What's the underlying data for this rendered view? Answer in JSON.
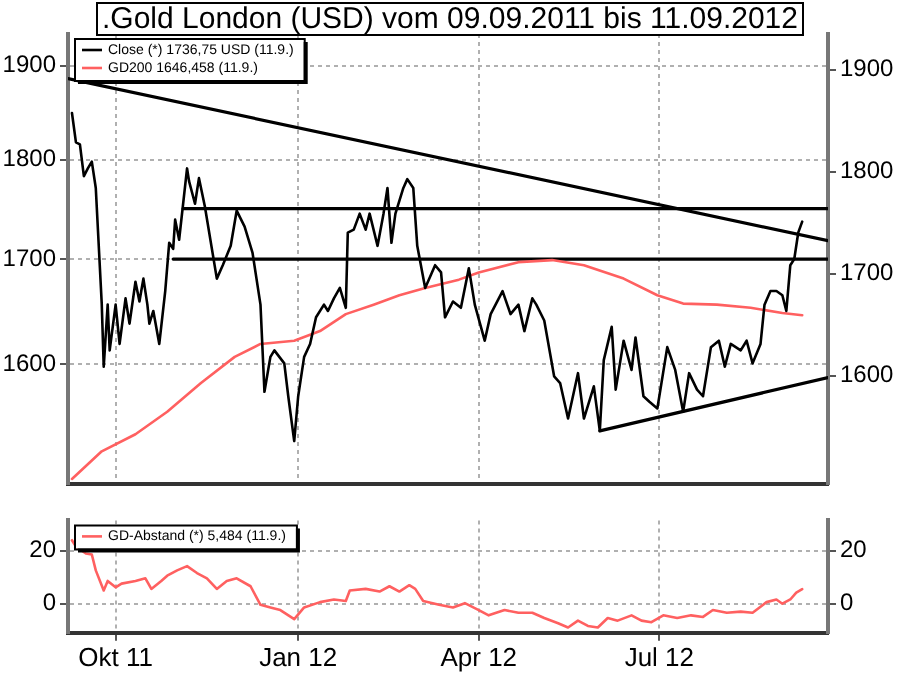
{
  "chart_data": [
    {
      "type": "line",
      "title": ".Gold London (USD) vom 09.09.2011 bis 11.09.2012",
      "log": true,
      "grid": true,
      "legend": "top left",
      "tick_labels": "y",
      "xlim": [
        "2011-09-07",
        "2012-09-24"
      ],
      "xticks": [
        {
          "value": "2011-10-01",
          "label": null
        },
        {
          "value": "2012-01-01",
          "label": null
        },
        {
          "value": "2012-04-01",
          "label": null
        },
        {
          "value": "2012-07-01",
          "label": null
        }
      ],
      "ylim": [
        1494,
        1935
      ],
      "yticks": [
        1600,
        1700,
        1800,
        1900
      ],
      "y2lim": [
        1494,
        1935
      ],
      "y2ticks": [
        1600,
        1700,
        1800,
        1900
      ],
      "series": [
        {
          "name": "Close (*) 1736,75 USD (11.9.)",
          "color": "#000000",
          "x": [
            "2011-09-09",
            "2011-09-11",
            "2011-09-13",
            "2011-09-15",
            "2011-09-17",
            "2011-09-19",
            "2011-09-21",
            "2011-09-24",
            "2011-09-25",
            "2011-09-27",
            "2011-09-28",
            "2011-10-01",
            "2011-10-03",
            "2011-10-06",
            "2011-10-08",
            "2011-10-11",
            "2011-10-13",
            "2011-10-15",
            "2011-10-17",
            "2011-10-18",
            "2011-10-20",
            "2011-10-23",
            "2011-10-26",
            "2011-10-28",
            "2011-10-30",
            "2011-10-31",
            "2011-11-02",
            "2011-11-06",
            "2011-11-07",
            "2011-11-10",
            "2011-11-12",
            "2011-11-15",
            "2011-11-21",
            "2011-11-24",
            "2011-11-28",
            "2011-12-01",
            "2011-12-05",
            "2011-12-09",
            "2011-12-13",
            "2011-12-15",
            "2011-12-18",
            "2011-12-20",
            "2011-12-25",
            "2011-12-27",
            "2011-12-30",
            "2012-01-01",
            "2012-01-04",
            "2012-01-07",
            "2012-01-10",
            "2012-01-14",
            "2012-01-16",
            "2012-01-19",
            "2012-01-22",
            "2012-01-25",
            "2012-01-26",
            "2012-01-29",
            "2012-02-01",
            "2012-02-04",
            "2012-02-06",
            "2012-02-10",
            "2012-02-13",
            "2012-02-15",
            "2012-02-17",
            "2012-02-19",
            "2012-02-23",
            "2012-02-25",
            "2012-02-28",
            "2012-03-01",
            "2012-03-05",
            "2012-03-10",
            "2012-03-13",
            "2012-03-15",
            "2012-03-19",
            "2012-03-23",
            "2012-03-27",
            "2012-03-30",
            "2012-04-04",
            "2012-04-07",
            "2012-04-13",
            "2012-04-17",
            "2012-04-21",
            "2012-04-24",
            "2012-04-28",
            "2012-04-30",
            "2012-05-04",
            "2012-05-09",
            "2012-05-12",
            "2012-05-16",
            "2012-05-21",
            "2012-05-24",
            "2012-05-29",
            "2012-06-01",
            "2012-06-03",
            "2012-06-07",
            "2012-06-09",
            "2012-06-13",
            "2012-06-17",
            "2012-06-19",
            "2012-06-23",
            "2012-06-26",
            "2012-06-30",
            "2012-07-05",
            "2012-07-09",
            "2012-07-13",
            "2012-07-16",
            "2012-07-20",
            "2012-07-23",
            "2012-07-27",
            "2012-07-31",
            "2012-08-03",
            "2012-08-06",
            "2012-08-11",
            "2012-08-14",
            "2012-08-17",
            "2012-08-21",
            "2012-08-23",
            "2012-08-26",
            "2012-08-29",
            "2012-09-01",
            "2012-09-03",
            "2012-09-05",
            "2012-09-07",
            "2012-09-09",
            "2012-09-11"
          ],
          "values": [
            1849,
            1818,
            1816,
            1783,
            1791,
            1798,
            1771,
            1657,
            1598,
            1656,
            1613,
            1656,
            1619,
            1662,
            1638,
            1678,
            1659,
            1681,
            1656,
            1638,
            1650,
            1619,
            1669,
            1716,
            1710,
            1739,
            1719,
            1791,
            1778,
            1755,
            1781,
            1752,
            1681,
            1694,
            1713,
            1748,
            1732,
            1706,
            1656,
            1575,
            1607,
            1613,
            1601,
            1571,
            1531,
            1571,
            1607,
            1619,
            1644,
            1656,
            1650,
            1662,
            1672,
            1653,
            1726,
            1729,
            1745,
            1729,
            1745,
            1713,
            1745,
            1771,
            1716,
            1745,
            1771,
            1780,
            1771,
            1713,
            1672,
            1694,
            1687,
            1644,
            1659,
            1653,
            1691,
            1656,
            1622,
            1647,
            1669,
            1647,
            1656,
            1631,
            1662,
            1656,
            1641,
            1589,
            1583,
            1551,
            1592,
            1551,
            1580,
            1540,
            1604,
            1635,
            1577,
            1622,
            1595,
            1625,
            1571,
            1566,
            1560,
            1616,
            1595,
            1557,
            1592,
            1577,
            1571,
            1616,
            1622,
            1598,
            1619,
            1613,
            1622,
            1601,
            1619,
            1656,
            1669,
            1669,
            1665,
            1650,
            1694,
            1700,
            1726,
            1737
          ]
        },
        {
          "name": "GD200 1646,458 (11.9.)",
          "color": "#ff6060",
          "x": [
            "2011-09-09",
            "2011-09-24",
            "2011-10-11",
            "2011-10-27",
            "2011-11-13",
            "2011-11-30",
            "2011-12-13",
            "2011-12-30",
            "2012-01-12",
            "2012-01-25",
            "2012-02-08",
            "2012-02-21",
            "2012-03-05",
            "2012-03-22",
            "2012-04-01",
            "2012-04-21",
            "2012-05-08",
            "2012-05-24",
            "2012-06-13",
            "2012-06-30",
            "2012-07-13",
            "2012-07-30",
            "2012-08-16",
            "2012-09-01",
            "2012-09-11"
          ],
          "values": [
            1498,
            1522,
            1537,
            1557,
            1583,
            1607,
            1619,
            1622,
            1631,
            1647,
            1656,
            1665,
            1672,
            1680,
            1687,
            1697,
            1699,
            1694,
            1681,
            1665,
            1657,
            1656,
            1653,
            1648,
            1646
          ]
        },
        {
          "type": "line",
          "color": "#000000",
          "x": [
            "2011-09-07",
            "2012-09-24"
          ],
          "values": [
            1886,
            1718
          ]
        },
        {
          "type": "line",
          "color": "#000000",
          "x": [
            "2011-11-04",
            "2012-09-24"
          ],
          "values": [
            1750,
            1750
          ]
        },
        {
          "type": "line",
          "color": "#000000",
          "x": [
            "2011-10-30",
            "2012-09-24"
          ],
          "values": [
            1700,
            1700
          ]
        },
        {
          "type": "line",
          "color": "#000000",
          "x": [
            "2012-06-01",
            "2012-09-24"
          ],
          "values": [
            1540,
            1588
          ]
        }
      ]
    },
    {
      "type": "line",
      "grid": true,
      "legend": "top left",
      "xlim": [
        "2011-09-07",
        "2012-09-24"
      ],
      "xticks": [
        {
          "value": "2011-10-01",
          "label": "Okt 11"
        },
        {
          "value": "2012-01-01",
          "label": "Jan 12"
        },
        {
          "value": "2012-04-01",
          "label": "Apr 12"
        },
        {
          "value": "2012-07-01",
          "label": "Jul 12"
        }
      ],
      "ylim": [
        -11,
        31.5
      ],
      "yticks": [
        0,
        20
      ],
      "y2lim": [
        -11,
        31.5
      ],
      "y2ticks": [
        0,
        20
      ],
      "series": [
        {
          "name": "GD-Abstand (*) 5,484 (11.9.)",
          "color": "#ff6060",
          "x": [
            "2011-09-09",
            "2011-09-11",
            "2011-09-16",
            "2011-09-19",
            "2011-09-21",
            "2011-09-25",
            "2011-09-27",
            "2011-10-01",
            "2011-10-04",
            "2011-10-11",
            "2011-10-16",
            "2011-10-19",
            "2011-10-24",
            "2011-10-27",
            "2011-11-01",
            "2011-11-06",
            "2011-11-11",
            "2011-11-16",
            "2011-11-21",
            "2011-11-26",
            "2011-12-01",
            "2011-12-08",
            "2011-12-13",
            "2011-12-18",
            "2011-12-23",
            "2011-12-30",
            "2012-01-04",
            "2012-01-12",
            "2012-01-19",
            "2012-01-25",
            "2012-01-27",
            "2012-02-04",
            "2012-02-11",
            "2012-02-16",
            "2012-02-21",
            "2012-02-26",
            "2012-02-29",
            "2012-03-04",
            "2012-03-12",
            "2012-03-19",
            "2012-03-25",
            "2012-04-01",
            "2012-04-06",
            "2012-04-14",
            "2012-04-21",
            "2012-04-28",
            "2012-05-04",
            "2012-05-11",
            "2012-05-16",
            "2012-05-21",
            "2012-05-26",
            "2012-05-31",
            "2012-06-05",
            "2012-06-10",
            "2012-06-17",
            "2012-06-22",
            "2012-06-27",
            "2012-07-03",
            "2012-07-10",
            "2012-07-17",
            "2012-07-23",
            "2012-07-28",
            "2012-08-04",
            "2012-08-11",
            "2012-08-17",
            "2012-08-24",
            "2012-08-29",
            "2012-09-01",
            "2012-09-05",
            "2012-09-08",
            "2012-09-11"
          ],
          "values": [
            24,
            21.6,
            19,
            18.6,
            12.6,
            5,
            8.6,
            6.2,
            7.6,
            8.6,
            9.6,
            5.6,
            8.6,
            10.6,
            12.6,
            14.2,
            11.6,
            9.6,
            5.6,
            8.6,
            9.6,
            6.6,
            -0.4,
            -1.4,
            -2.4,
            -5.8,
            -1.4,
            0.6,
            1.6,
            1,
            5,
            5.6,
            4.6,
            6.6,
            4.6,
            7,
            5.6,
            1,
            -0.4,
            -1.4,
            0.2,
            -2.4,
            -4.4,
            -2.4,
            -3.4,
            -3.4,
            -5.4,
            -7.4,
            -9,
            -6.4,
            -8.4,
            -9,
            -5.4,
            -6.4,
            -4.4,
            -6.4,
            -7,
            -4.4,
            -5.4,
            -4.4,
            -5,
            -2.4,
            -3.4,
            -3,
            -3.4,
            0.6,
            1.6,
            0,
            1.6,
            4.2,
            5.5
          ]
        }
      ]
    }
  ]
}
